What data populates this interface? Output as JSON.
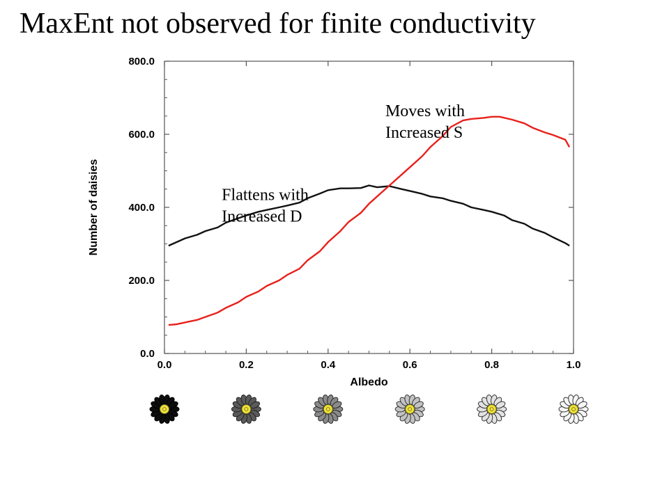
{
  "slide": {
    "title": "MaxEnt not observed for finite conductivity"
  },
  "chart_data": {
    "type": "line",
    "xlabel": "Albedo",
    "ylabel": "Number of daisies",
    "xlim": [
      0.0,
      1.0
    ],
    "ylim": [
      0.0,
      800.0
    ],
    "xticks": [
      "0.0",
      "0.2",
      "0.4",
      "0.6",
      "0.8",
      "1.0"
    ],
    "yticks": [
      "0.0",
      "200.0",
      "400.0",
      "600.0",
      "800.0"
    ],
    "grid": false,
    "colors": {
      "black_series": "#111111",
      "red_series": "#e8201a"
    },
    "series": [
      {
        "color_key": "black_series",
        "x": [
          0.01,
          0.03,
          0.05,
          0.08,
          0.1,
          0.13,
          0.15,
          0.18,
          0.2,
          0.23,
          0.25,
          0.28,
          0.3,
          0.33,
          0.35,
          0.38,
          0.4,
          0.43,
          0.45,
          0.48,
          0.5,
          0.52,
          0.55,
          0.58,
          0.6,
          0.63,
          0.65,
          0.68,
          0.7,
          0.73,
          0.75,
          0.78,
          0.8,
          0.83,
          0.85,
          0.88,
          0.9,
          0.93,
          0.95,
          0.98,
          0.99
        ],
        "y": [
          295,
          305,
          315,
          325,
          335,
          345,
          358,
          370,
          378,
          388,
          393,
          400,
          405,
          413,
          425,
          438,
          447,
          452,
          452,
          453,
          460,
          455,
          458,
          450,
          445,
          437,
          430,
          425,
          418,
          410,
          400,
          393,
          388,
          378,
          365,
          355,
          342,
          330,
          318,
          302,
          295
        ]
      },
      {
        "color_key": "red_series",
        "x": [
          0.01,
          0.03,
          0.05,
          0.08,
          0.1,
          0.13,
          0.15,
          0.18,
          0.2,
          0.23,
          0.25,
          0.28,
          0.3,
          0.33,
          0.35,
          0.38,
          0.4,
          0.43,
          0.45,
          0.48,
          0.5,
          0.53,
          0.55,
          0.58,
          0.6,
          0.63,
          0.65,
          0.68,
          0.7,
          0.73,
          0.75,
          0.78,
          0.8,
          0.82,
          0.85,
          0.88,
          0.9,
          0.93,
          0.95,
          0.98,
          0.99
        ],
        "y": [
          78,
          80,
          85,
          92,
          100,
          112,
          125,
          140,
          155,
          170,
          185,
          200,
          215,
          232,
          255,
          280,
          305,
          335,
          360,
          385,
          410,
          440,
          460,
          490,
          510,
          540,
          565,
          595,
          620,
          638,
          642,
          645,
          648,
          648,
          640,
          630,
          618,
          605,
          598,
          585,
          565
        ]
      }
    ],
    "annotations": [
      {
        "lines": [
          "Flattens with",
          "Increased D"
        ],
        "x": 0.14,
        "y": 420
      },
      {
        "lines": [
          "Moves with",
          "Increased S"
        ],
        "x": 0.54,
        "y": 650
      }
    ]
  },
  "daisies": [
    {
      "albedo": "0.0",
      "petal_color": "#0d0d0d",
      "petal_stroke": "#000000"
    },
    {
      "albedo": "0.2",
      "petal_color": "#5a5a5a",
      "petal_stroke": "#222222"
    },
    {
      "albedo": "0.4",
      "petal_color": "#8a8a8a",
      "petal_stroke": "#2a2a2a"
    },
    {
      "albedo": "0.6",
      "petal_color": "#c2c2c2",
      "petal_stroke": "#333333"
    },
    {
      "albedo": "0.8",
      "petal_color": "#e2e2e2",
      "petal_stroke": "#333333"
    },
    {
      "albedo": "1.0",
      "petal_color": "#f6f6f6",
      "petal_stroke": "#333333"
    }
  ]
}
